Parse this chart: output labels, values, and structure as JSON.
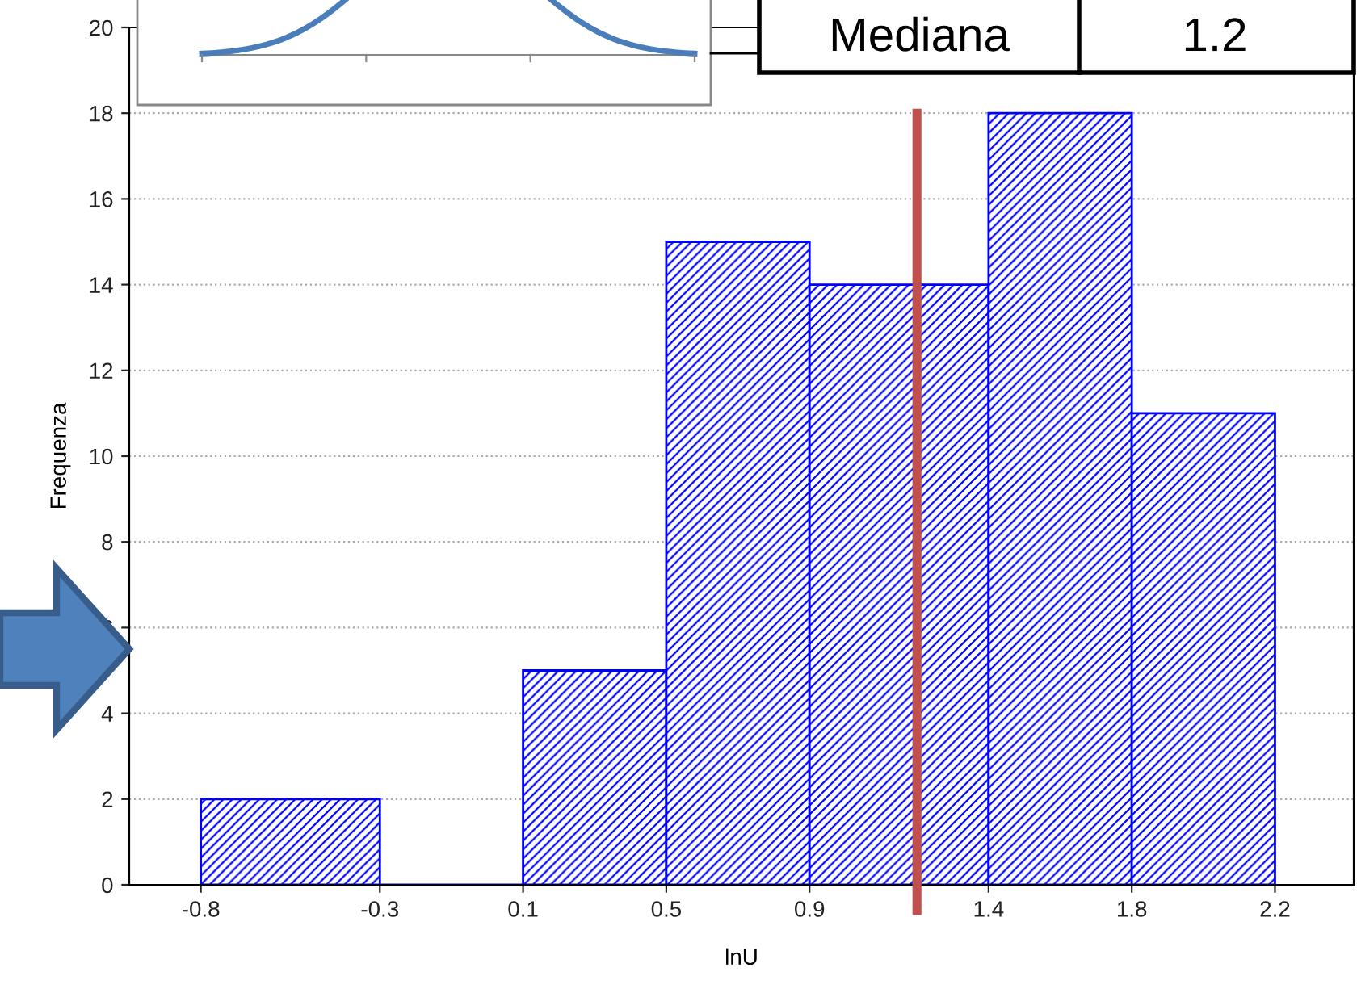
{
  "chart_data": {
    "type": "histogram",
    "xlabel": "lnU",
    "ylabel": "Frequenza",
    "bins": [
      -0.8,
      -0.3,
      0.1,
      0.5,
      0.9,
      1.4,
      1.8,
      2.2
    ],
    "values": [
      2,
      0,
      5,
      15,
      14,
      18,
      11
    ],
    "color": "#0000ff",
    "xlim": [
      -1.0,
      2.42
    ],
    "ylim": [
      0,
      20
    ],
    "xticks": [
      -0.8,
      -0.3,
      0.1,
      0.5,
      0.9,
      1.4,
      1.8,
      2.2
    ],
    "yticks": [
      0,
      2,
      4,
      6,
      8,
      10,
      12,
      14,
      16,
      18,
      20
    ],
    "grid": "y",
    "ref_lines": [
      {
        "axis": "x",
        "value": 1.2,
        "color": "#c0504d"
      }
    ],
    "annotations": [
      "Mediana",
      "1.2"
    ]
  }
}
